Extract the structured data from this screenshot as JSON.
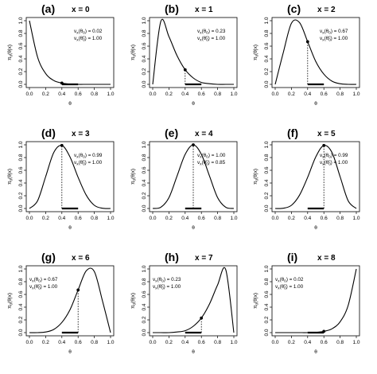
{
  "chart_data": [
    {
      "type": "line",
      "panel": "(a)",
      "title": "x = 0",
      "xlabel": "θ",
      "ylabel": "π_0(θ|x)",
      "xlim": [
        0,
        1
      ],
      "ylim": [
        0,
        1
      ],
      "x": [
        0,
        0.1,
        0.2,
        0.3,
        0.4,
        0.5,
        0.6,
        0.7,
        0.8,
        0.9,
        1.0
      ],
      "series": [
        {
          "values": [
            1.0,
            0.43,
            0.17,
            0.06,
            0.02,
            0.004,
            0.0,
            0.0,
            0.0,
            0.0,
            0.0
          ]
        }
      ],
      "point": {
        "x": 0.4,
        "y": 0.02
      },
      "interval": [
        0.4,
        0.6
      ],
      "annotations": [
        "v_x(θ_0) = 0.02",
        "v_x(θ_0^c) = 1.00"
      ]
    },
    {
      "type": "line",
      "panel": "(b)",
      "title": "x = 1",
      "xlabel": "θ",
      "ylabel": "π_0(θ|x)",
      "xlim": [
        0,
        1
      ],
      "ylim": [
        0,
        1
      ],
      "x": [
        0,
        0.1,
        0.2,
        0.3,
        0.4,
        0.5,
        0.6,
        0.7,
        0.8,
        0.9,
        1.0
      ],
      "series": [
        {
          "values": [
            0.0,
            0.99,
            0.75,
            0.45,
            0.23,
            0.1,
            0.03,
            0.01,
            0.0,
            0.0,
            0.0
          ]
        }
      ],
      "point": {
        "x": 0.4,
        "y": 0.23
      },
      "interval": [
        0.4,
        0.6
      ],
      "annotations": [
        "v_x(θ_0) = 0.23",
        "v_x(θ_0^c) = 1.00"
      ]
    },
    {
      "type": "line",
      "panel": "(c)",
      "title": "x = 2",
      "xlabel": "θ",
      "ylabel": "π_0(θ|x)",
      "xlim": [
        0,
        1
      ],
      "ylim": [
        0,
        1
      ],
      "x": [
        0,
        0.1,
        0.2,
        0.3,
        0.4,
        0.5,
        0.6,
        0.7,
        0.8,
        0.9,
        1.0
      ],
      "series": [
        {
          "values": [
            0.0,
            0.5,
            0.96,
            0.97,
            0.67,
            0.36,
            0.16,
            0.05,
            0.01,
            0.0,
            0.0
          ]
        }
      ],
      "point": {
        "x": 0.4,
        "y": 0.67
      },
      "interval": [
        0.4,
        0.6
      ],
      "annotations": [
        "v_x(θ_0) = 0.67",
        "v_x(θ_0^c) = 1.00"
      ]
    },
    {
      "type": "line",
      "panel": "(d)",
      "title": "x = 3",
      "xlabel": "θ",
      "ylabel": "π_0(θ|x)",
      "xlim": [
        0,
        1
      ],
      "ylim": [
        0,
        1
      ],
      "x": [
        0,
        0.1,
        0.2,
        0.3,
        0.4,
        0.5,
        0.6,
        0.7,
        0.8,
        0.9,
        1.0
      ],
      "series": [
        {
          "values": [
            0.0,
            0.12,
            0.5,
            0.88,
            0.99,
            0.81,
            0.49,
            0.21,
            0.05,
            0.004,
            0.0
          ]
        }
      ],
      "point": {
        "x": 0.4,
        "y": 0.99
      },
      "interval": [
        0.4,
        0.6
      ],
      "annotations": [
        "v_x(θ_0) = 0.99",
        "v_x(θ_0^c) = 1.00"
      ]
    },
    {
      "type": "line",
      "panel": "(e)",
      "title": "x = 4",
      "xlabel": "θ",
      "ylabel": "π_0(θ|x)",
      "xlim": [
        0,
        1
      ],
      "ylim": [
        0,
        1
      ],
      "x": [
        0,
        0.1,
        0.2,
        0.3,
        0.4,
        0.5,
        0.6,
        0.7,
        0.8,
        0.9,
        1.0
      ],
      "series": [
        {
          "values": [
            0.0,
            0.02,
            0.17,
            0.51,
            0.85,
            1.0,
            0.85,
            0.51,
            0.17,
            0.02,
            0.0
          ]
        }
      ],
      "point": {
        "x": 0.5,
        "y": 1.0
      },
      "interval": [
        0.4,
        0.6
      ],
      "annotations": [
        "v_x(θ_0) = 1.00",
        "v_x(θ_0^c) = 0.85"
      ]
    },
    {
      "type": "line",
      "panel": "(f)",
      "title": "x = 5",
      "xlabel": "θ",
      "ylabel": "π_0(θ|x)",
      "xlim": [
        0,
        1
      ],
      "ylim": [
        0,
        1
      ],
      "x": [
        0,
        0.1,
        0.2,
        0.3,
        0.4,
        0.5,
        0.6,
        0.7,
        0.8,
        0.9,
        1.0
      ],
      "series": [
        {
          "values": [
            0.0,
            0.004,
            0.05,
            0.21,
            0.49,
            0.81,
            0.99,
            0.88,
            0.5,
            0.12,
            0.0
          ]
        }
      ],
      "point": {
        "x": 0.6,
        "y": 0.99
      },
      "interval": [
        0.4,
        0.6
      ],
      "annotations": [
        "v_x(θ_0) = 0.99",
        "v_x(θ_0^c) = 1.00"
      ]
    },
    {
      "type": "line",
      "panel": "(g)",
      "title": "x = 6",
      "xlabel": "θ",
      "ylabel": "π_0(θ|x)",
      "xlim": [
        0,
        1
      ],
      "ylim": [
        0,
        1
      ],
      "x": [
        0,
        0.1,
        0.2,
        0.3,
        0.4,
        0.5,
        0.6,
        0.7,
        0.8,
        0.9,
        1.0
      ],
      "series": [
        {
          "values": [
            0.0,
            0.0,
            0.01,
            0.05,
            0.16,
            0.36,
            0.67,
            0.97,
            0.96,
            0.5,
            0.0
          ]
        }
      ],
      "point": {
        "x": 0.6,
        "y": 0.67
      },
      "interval": [
        0.4,
        0.6
      ],
      "annotations": [
        "v_x(θ_0) = 0.67",
        "v_x(θ_0^c) = 1.00"
      ]
    },
    {
      "type": "line",
      "panel": "(h)",
      "title": "x = 7",
      "xlabel": "θ",
      "ylabel": "π_0(θ|x)",
      "xlim": [
        0,
        1
      ],
      "ylim": [
        0,
        1
      ],
      "x": [
        0,
        0.1,
        0.2,
        0.3,
        0.4,
        0.5,
        0.6,
        0.7,
        0.8,
        0.9,
        1.0
      ],
      "series": [
        {
          "values": [
            0.0,
            0.0,
            0.0,
            0.01,
            0.03,
            0.1,
            0.23,
            0.45,
            0.75,
            0.99,
            0.0
          ]
        }
      ],
      "point": {
        "x": 0.6,
        "y": 0.23
      },
      "interval": [
        0.4,
        0.6
      ],
      "annotations": [
        "v_x(θ_0) = 0.23",
        "v_x(θ_0^c) = 1.00"
      ]
    },
    {
      "type": "line",
      "panel": "(i)",
      "title": "x = 8",
      "xlabel": "θ",
      "ylabel": "π_0(θ|x)",
      "xlim": [
        0,
        1
      ],
      "ylim": [
        0,
        1
      ],
      "x": [
        0,
        0.1,
        0.2,
        0.3,
        0.4,
        0.5,
        0.6,
        0.7,
        0.8,
        0.9,
        1.0
      ],
      "series": [
        {
          "values": [
            0.0,
            0.0,
            0.0,
            0.0,
            0.0,
            0.004,
            0.02,
            0.06,
            0.17,
            0.43,
            1.0
          ]
        }
      ],
      "point": {
        "x": 0.6,
        "y": 0.02
      },
      "interval": [
        0.4,
        0.6
      ],
      "annotations": [
        "v_x(θ_0) = 0.02",
        "v_x(θ_0^c) = 1.00"
      ]
    }
  ],
  "axis_ticks": [
    "0.0",
    "0.2",
    "0.4",
    "0.6",
    "0.8",
    "1.0"
  ]
}
